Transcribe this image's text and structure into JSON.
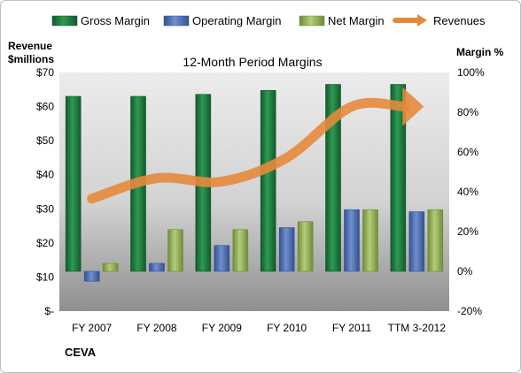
{
  "chart_data": {
    "type": "bar",
    "title": "12-Month Period Margins",
    "company": "CEVA",
    "categories": [
      "FY 2007",
      "FY 2008",
      "FY 2009",
      "FY 2010",
      "FY 2011",
      "TTM 3-2012"
    ],
    "left_axis": {
      "label_line1": "Revenue",
      "label_line2": "$millions",
      "range": [
        0,
        70
      ],
      "ticks": [
        0,
        10,
        20,
        30,
        40,
        50,
        60,
        70
      ],
      "tick_labels": [
        "$-",
        "$10",
        "$20",
        "$30",
        "$40",
        "$50",
        "$60",
        "$70"
      ]
    },
    "right_axis": {
      "label": "Margin %",
      "range": [
        -20,
        100
      ],
      "ticks": [
        -20,
        0,
        20,
        40,
        60,
        80,
        100
      ],
      "tick_labels": [
        "-20%",
        "0%",
        "20%",
        "40%",
        "60%",
        "80%",
        "100%"
      ]
    },
    "series": [
      {
        "name": "Gross Margin",
        "type": "bar",
        "axis": "right",
        "color": "#1f7a3f",
        "values": [
          88,
          88,
          89,
          91,
          94,
          94
        ]
      },
      {
        "name": "Operating Margin",
        "type": "bar",
        "axis": "right",
        "color": "#4f6fb3",
        "values": [
          -5,
          4,
          13,
          22,
          31,
          30
        ]
      },
      {
        "name": "Net Margin",
        "type": "bar",
        "axis": "right",
        "color": "#93b05a",
        "values": [
          4,
          21,
          21,
          25,
          31,
          31
        ]
      },
      {
        "name": "Revenues",
        "type": "line",
        "axis": "left",
        "color": "#e58a3c",
        "values": [
          33,
          39,
          38,
          45,
          60,
          60
        ]
      }
    ],
    "legend_position": "top",
    "grid": false
  }
}
